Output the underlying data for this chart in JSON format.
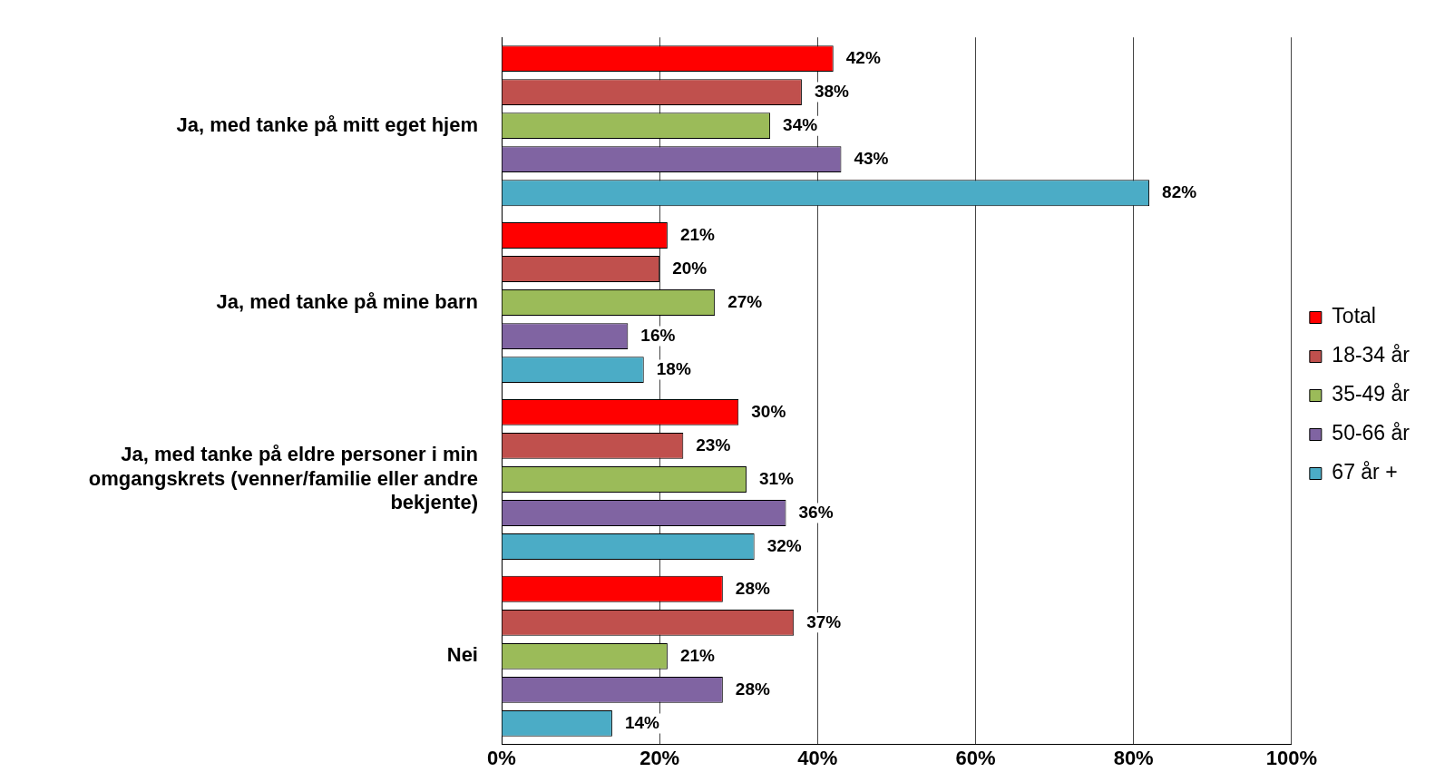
{
  "chart_data": {
    "type": "bar",
    "orientation": "horizontal",
    "categories": [
      "Ja, med tanke på mitt eget hjem",
      "Ja, med tanke på mine barn",
      "Ja, med tanke på eldre personer i min omgangskrets (venner/familie eller andre bekjente)",
      "Nei"
    ],
    "series": [
      {
        "name": "Total",
        "color": "#ff0000",
        "values": [
          42,
          21,
          30,
          28
        ],
        "value_labels": [
          "42%",
          "21%",
          "30%",
          "28%"
        ]
      },
      {
        "name": "18-34 år",
        "color": "#c0504d",
        "values": [
          38,
          20,
          23,
          37
        ],
        "value_labels": [
          "38%",
          "20%",
          "23%",
          "37%"
        ]
      },
      {
        "name": "35-49 år",
        "color": "#9bbb59",
        "values": [
          34,
          27,
          31,
          21
        ],
        "value_labels": [
          "34%",
          "27%",
          "31%",
          "21%"
        ]
      },
      {
        "name": "50-66 år",
        "color": "#8064a2",
        "values": [
          43,
          16,
          36,
          28
        ],
        "value_labels": [
          "43%",
          "16%",
          "36%",
          "28%"
        ]
      },
      {
        "name": "67 år +",
        "color": "#4bacc6",
        "values": [
          82,
          18,
          32,
          14
        ],
        "value_labels": [
          "82%",
          "18%",
          "32%",
          "14%"
        ]
      }
    ],
    "xlim": [
      0,
      100
    ],
    "xticks": [
      {
        "value": 0,
        "label": "0%"
      },
      {
        "value": 20,
        "label": "20%"
      },
      {
        "value": 40,
        "label": "40%"
      },
      {
        "value": 60,
        "label": "60%"
      },
      {
        "value": 80,
        "label": "80%"
      },
      {
        "value": 100,
        "label": "100%"
      }
    ],
    "grid": "x",
    "legend": "right"
  }
}
